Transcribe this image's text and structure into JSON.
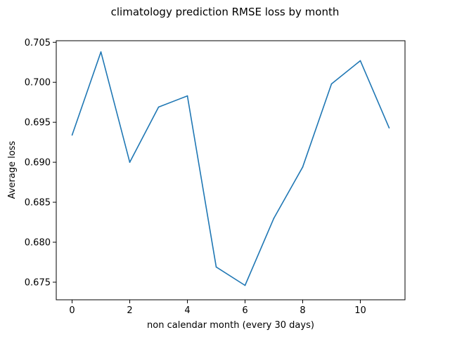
{
  "chart_data": {
    "type": "line",
    "title": "climatology prediction RMSE loss by month",
    "xlabel": "non calendar month (every 30 days)",
    "ylabel": "Average loss",
    "x": [
      0,
      1,
      2,
      3,
      4,
      5,
      6,
      7,
      8,
      9,
      10,
      11
    ],
    "series": [
      {
        "values": [
          0.6934,
          0.7038,
          0.69,
          0.6969,
          0.6983,
          0.6769,
          0.6746,
          0.683,
          0.6894,
          0.6998,
          0.7027,
          0.6943
        ],
        "color": "#1f77b4"
      }
    ],
    "xlim": [
      -0.55,
      11.55
    ],
    "ylim": [
      0.6728,
      0.7052
    ],
    "xticks": [
      0,
      2,
      4,
      6,
      8,
      10
    ],
    "xtick_labels": [
      "0",
      "2",
      "4",
      "6",
      "8",
      "10"
    ],
    "yticks": [
      0.675,
      0.68,
      0.685,
      0.69,
      0.695,
      0.7,
      0.705
    ],
    "ytick_labels": [
      "0.675",
      "0.680",
      "0.685",
      "0.690",
      "0.695",
      "0.700",
      "0.705"
    ],
    "grid": false,
    "legend": "none"
  }
}
